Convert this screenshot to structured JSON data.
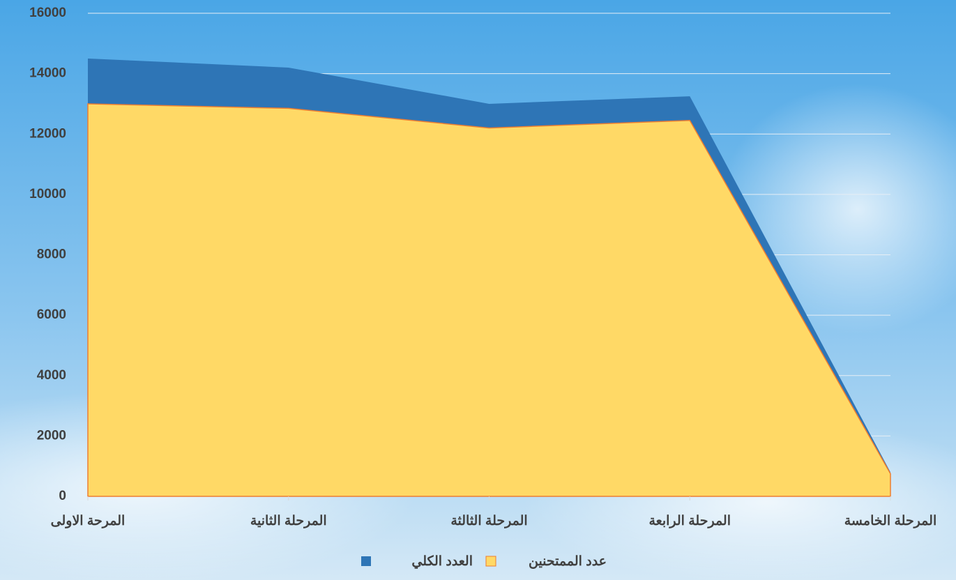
{
  "chart_data": {
    "type": "area",
    "categories": [
      "المرحة الاولى",
      "المرحلة الثانية",
      "المرحلة الثالثة",
      "المرحلة الرابعة",
      "المرحلة الخامسة"
    ],
    "series": [
      {
        "name": "العدد الكلي",
        "color": "#2e75b6",
        "values": [
          14500,
          14200,
          13000,
          13250,
          800
        ]
      },
      {
        "name": "عدد الممتحنين",
        "color": "#ffd966",
        "values": [
          13000,
          12850,
          12200,
          12450,
          750
        ]
      }
    ],
    "ylim": [
      0,
      16000
    ],
    "yticks": [
      0,
      2000,
      4000,
      6000,
      8000,
      10000,
      12000,
      14000,
      16000
    ],
    "grid": true
  }
}
